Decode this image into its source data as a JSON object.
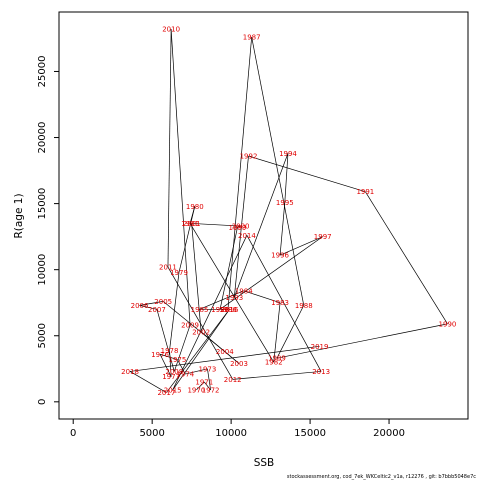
{
  "chart_data": {
    "type": "line",
    "xlabel": "SSB",
    "ylabel": "R(age 1)",
    "xlim": [
      -900,
      25000
    ],
    "ylim": [
      -1300,
      29500
    ],
    "xticks": [
      0,
      5000,
      10000,
      15000,
      20000
    ],
    "yticks": [
      0,
      5000,
      10000,
      15000,
      20000,
      25000
    ],
    "xtick_labels": [
      "0",
      "5000",
      "10000",
      "15000",
      "20000"
    ],
    "ytick_labels": [
      "0",
      "5000",
      "10000",
      "15000",
      "20000",
      "25000"
    ],
    "line_color": "#000000",
    "label_color": "#e00000",
    "points": [
      {
        "year": "1970",
        "x": 7800,
        "y": 900
      },
      {
        "year": "1971",
        "x": 8300,
        "y": 1500
      },
      {
        "year": "1972",
        "x": 8700,
        "y": 900
      },
      {
        "year": "1973",
        "x": 8500,
        "y": 2500
      },
      {
        "year": "1974",
        "x": 7100,
        "y": 2100
      },
      {
        "year": "1975",
        "x": 6600,
        "y": 3200
      },
      {
        "year": "1976",
        "x": 5500,
        "y": 3600
      },
      {
        "year": "1977",
        "x": 6200,
        "y": 1900
      },
      {
        "year": "1978",
        "x": 6100,
        "y": 3900
      },
      {
        "year": "1979",
        "x": 6700,
        "y": 9800
      },
      {
        "year": "1980",
        "x": 7700,
        "y": 14800
      },
      {
        "year": "1981",
        "x": 7400,
        "y": 13500
      },
      {
        "year": "1982",
        "x": 12700,
        "y": 3000
      },
      {
        "year": "1983",
        "x": 13100,
        "y": 7500
      },
      {
        "year": "1984",
        "x": 10800,
        "y": 8400
      },
      {
        "year": "1985",
        "x": 8000,
        "y": 7000
      },
      {
        "year": "1986",
        "x": 9800,
        "y": 7000
      },
      {
        "year": "1987",
        "x": 11300,
        "y": 27600
      },
      {
        "year": "1988",
        "x": 14600,
        "y": 7300
      },
      {
        "year": "1989",
        "x": 12900,
        "y": 3300
      },
      {
        "year": "1990",
        "x": 23700,
        "y": 5900
      },
      {
        "year": "1991",
        "x": 18500,
        "y": 15900
      },
      {
        "year": "1992",
        "x": 11100,
        "y": 18600
      },
      {
        "year": "1993",
        "x": 10200,
        "y": 7900
      },
      {
        "year": "1994",
        "x": 13600,
        "y": 18800
      },
      {
        "year": "1995",
        "x": 13400,
        "y": 15100
      },
      {
        "year": "1996",
        "x": 13100,
        "y": 11100
      },
      {
        "year": "1997",
        "x": 15800,
        "y": 12500
      },
      {
        "year": "1998",
        "x": 9300,
        "y": 7000
      },
      {
        "year": "1999",
        "x": 10400,
        "y": 13200
      },
      {
        "year": "2000",
        "x": 10600,
        "y": 13300
      },
      {
        "year": "2001",
        "x": 7500,
        "y": 13500
      },
      {
        "year": "2002",
        "x": 8100,
        "y": 5300
      },
      {
        "year": "2003",
        "x": 10500,
        "y": 2900
      },
      {
        "year": "2004",
        "x": 9600,
        "y": 3800
      },
      {
        "year": "2005",
        "x": 5700,
        "y": 7600
      },
      {
        "year": "2006",
        "x": 4200,
        "y": 7300
      },
      {
        "year": "2007",
        "x": 5300,
        "y": 7000
      },
      {
        "year": "2008",
        "x": 6400,
        "y": 2300
      },
      {
        "year": "2009",
        "x": 7400,
        "y": 5800
      },
      {
        "year": "2010",
        "x": 6200,
        "y": 28200
      },
      {
        "year": "2011",
        "x": 6000,
        "y": 10200
      },
      {
        "year": "2012",
        "x": 10100,
        "y": 1700
      },
      {
        "year": "2013",
        "x": 15700,
        "y": 2300
      },
      {
        "year": "2014",
        "x": 11000,
        "y": 12600
      },
      {
        "year": "2015",
        "x": 6300,
        "y": 900
      },
      {
        "year": "2016",
        "x": 9900,
        "y": 7000
      },
      {
        "year": "2017",
        "x": 5900,
        "y": 700
      },
      {
        "year": "2018",
        "x": 3600,
        "y": 2300
      },
      {
        "year": "2019",
        "x": 15600,
        "y": 4200
      }
    ]
  },
  "footer": "stockassessment.org, cod_7ek_WKCeltic2_v1a, r12276 , git: b7bbb5048e7c"
}
